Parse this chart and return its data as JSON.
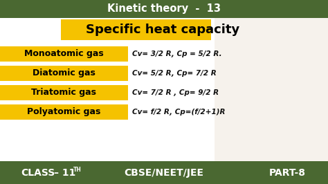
{
  "title_top": "Kinetic theory  -  13",
  "title_main": "Specific heat capacity",
  "top_bar_color": "#4a6831",
  "bottom_bar_color": "#4a6831",
  "yellow_bg": "#f5c200",
  "white_bg": "#ffffff",
  "rows": [
    {
      "label": "Monoatomic gas",
      "formula": "Cv= 3/2 R, Cp = 5/2 R."
    },
    {
      "label": "Diatomic gas",
      "formula": "Cv= 5/2 R, Cp= 7/2 R"
    },
    {
      "label": "Triatomic gas",
      "formula": "Cv= 7/2 R , Cp= 9/2 R"
    },
    {
      "label": "Polyatomic gas",
      "formula": "Cv= f/2 R, Cp=(f/2+1)R"
    }
  ],
  "bottom_left": "CLASS",
  "bottom_dash": " – 11",
  "bottom_th": "TH",
  "bottom_mid": "CBSE/NEET/JEE",
  "bottom_right": "PART-8",
  "label_text_color": "#000000",
  "top_text_color": "#ffffff",
  "formula_text_color": "#111111",
  "fig_width": 4.74,
  "fig_height": 2.66,
  "dpi": 100
}
